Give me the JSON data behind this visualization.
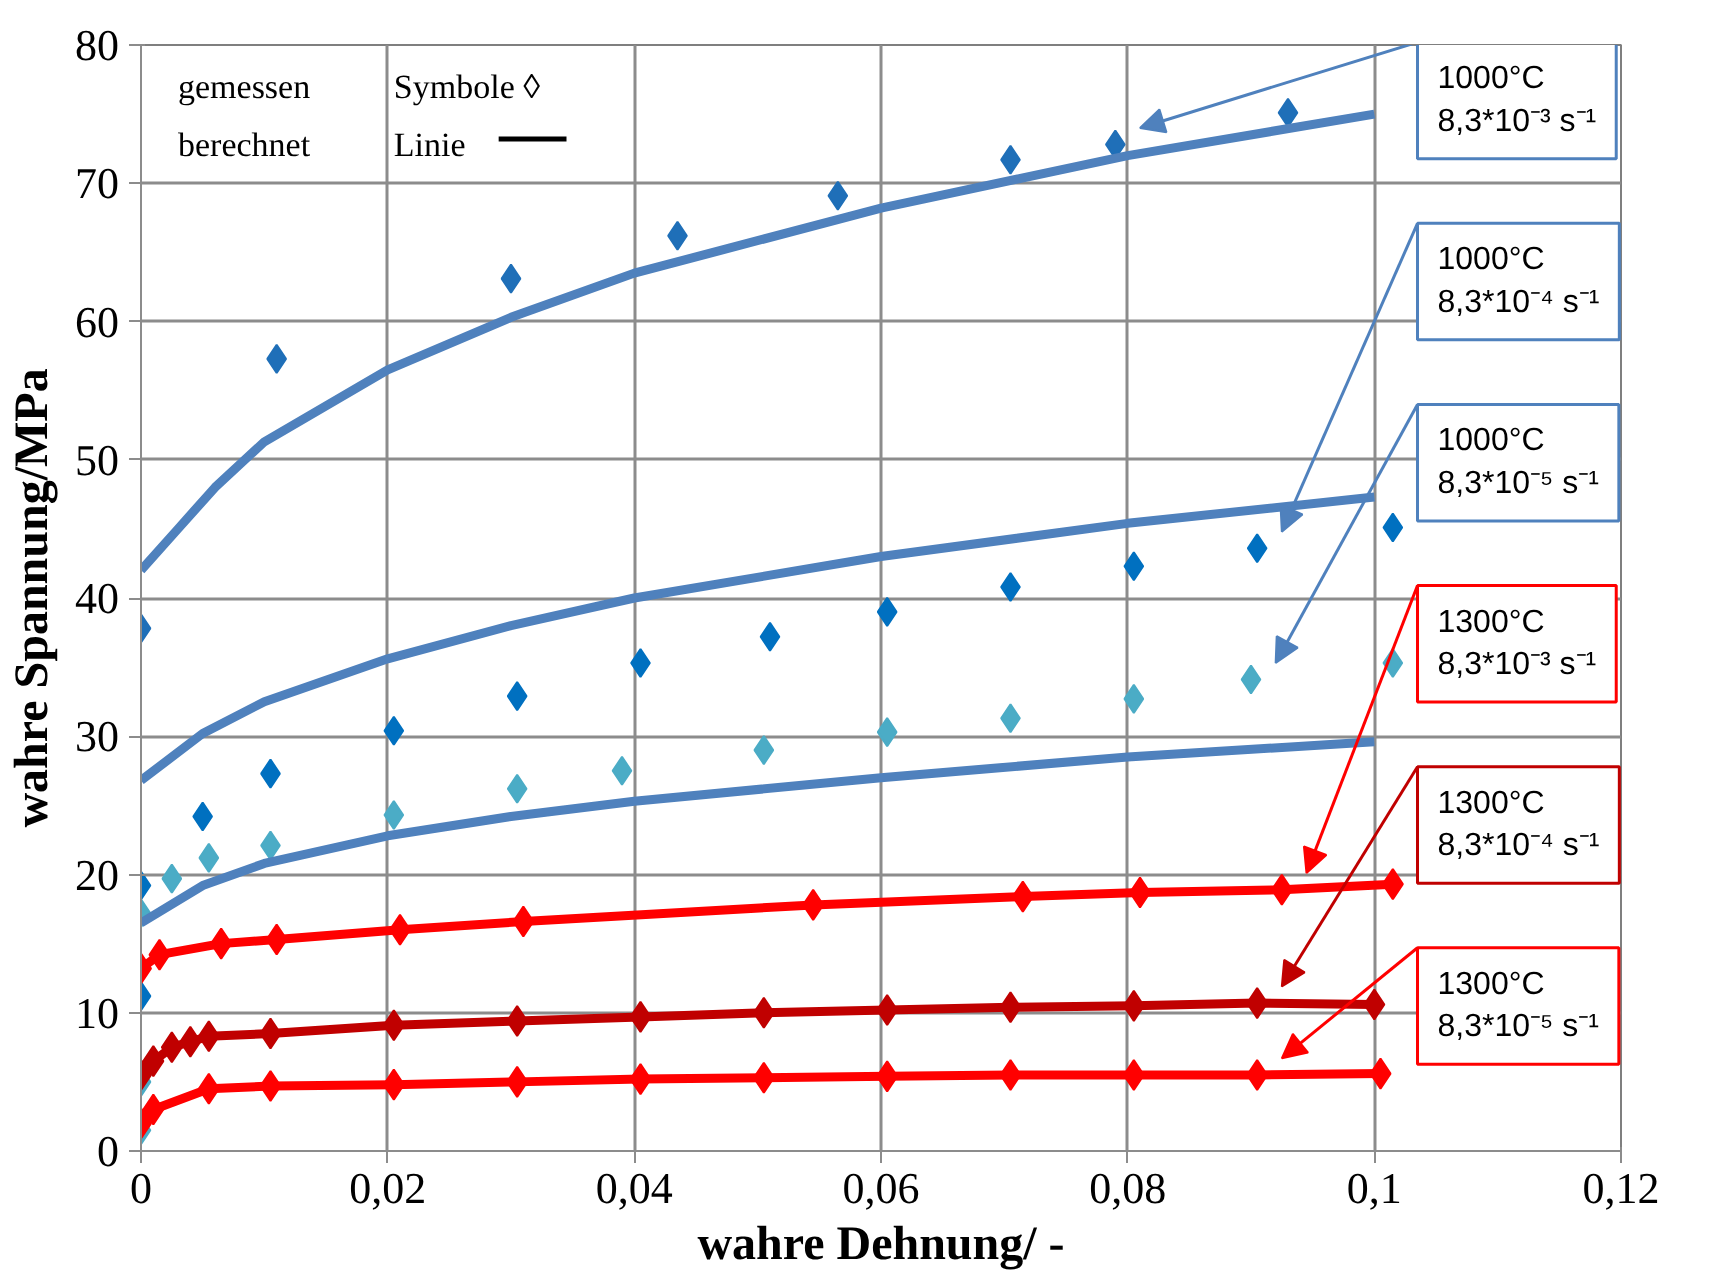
{
  "chart_data": {
    "type": "scatter",
    "xlabel": "wahre Dehnung/ -",
    "ylabel": "wahre Spannung/MPa",
    "xlim": [
      0,
      0.12
    ],
    "xticks": [
      {
        "value": 0,
        "label": "0"
      },
      {
        "value": 0.02,
        "label": "0,02"
      },
      {
        "value": 0.04,
        "label": "0,04"
      },
      {
        "value": 0.06,
        "label": "0,06"
      },
      {
        "value": 0.08,
        "label": "0,08"
      },
      {
        "value": 0.1,
        "label": "0,1"
      },
      {
        "value": 0.12,
        "label": "0,12"
      }
    ],
    "ylim": [
      0,
      80
    ],
    "yticks": [
      0,
      10,
      20,
      30,
      40,
      50,
      60,
      70,
      80
    ],
    "grid": true,
    "marker": "diamond",
    "series": [
      {
        "color": "#1f6fb8",
        "x": [
          0,
          0.011,
          0.03,
          0.0435,
          0.0565,
          0.0705,
          0.079,
          0.093
        ],
        "values": [
          37.8,
          57.3,
          63.1,
          66.2,
          69.1,
          71.7,
          72.8,
          75.1
        ]
      },
      {
        "type": "line",
        "marker": "none",
        "color": "#4f81bd",
        "x": [
          0,
          0.003,
          0.006,
          0.01,
          0.02,
          0.03,
          0.04,
          0.06,
          0.08,
          0.1
        ],
        "values": [
          42,
          45,
          48,
          51.3,
          56.5,
          60.3,
          63.5,
          68.2,
          72,
          75
        ]
      },
      {
        "color": "#0070c0",
        "x": [
          0,
          0,
          0.005,
          0.0105,
          0.0205,
          0.0305,
          0.0405,
          0.051,
          0.0605,
          0.0705,
          0.0805,
          0.0905,
          0.1015
        ],
        "values": [
          11.2,
          19.2,
          24.2,
          27.3,
          30.4,
          32.9,
          35.3,
          37.2,
          39.0,
          40.8,
          42.3,
          43.6,
          45.1
        ]
      },
      {
        "type": "line",
        "marker": "none",
        "color": "#4f81bd",
        "x": [
          0,
          0.005,
          0.01,
          0.02,
          0.03,
          0.04,
          0.06,
          0.08,
          0.1
        ],
        "values": [
          26.8,
          30.2,
          32.5,
          35.6,
          38,
          40,
          43,
          45.4,
          47.3
        ]
      },
      {
        "color": "#4bacc6",
        "x": [
          0,
          0,
          0,
          0.0025,
          0.0055,
          0.0105,
          0.0205,
          0.0305,
          0.039,
          0.0505,
          0.0605,
          0.0705,
          0.0805,
          0.09,
          0.1015
        ],
        "values": [
          1.5,
          5,
          17.2,
          19.7,
          21.2,
          22.1,
          24.3,
          26.2,
          27.5,
          29.0,
          30.3,
          31.3,
          32.7,
          34.1,
          35.3
        ]
      },
      {
        "type": "line",
        "marker": "none",
        "color": "#4f81bd",
        "x": [
          0,
          0.005,
          0.01,
          0.02,
          0.03,
          0.04,
          0.06,
          0.08,
          0.1
        ],
        "values": [
          16.5,
          19.2,
          20.8,
          22.8,
          24.2,
          25.3,
          27,
          28.5,
          29.6
        ]
      },
      {
        "type": "line",
        "color": "#ff0000",
        "x": [
          0,
          0.0015,
          0.0065,
          0.011,
          0.021,
          0.031,
          0.0545,
          0.0715,
          0.081,
          0.0925,
          0.1015
        ],
        "values": [
          13.2,
          14.2,
          15.0,
          15.3,
          16.0,
          16.6,
          17.8,
          18.4,
          18.7,
          18.9,
          19.3
        ]
      },
      {
        "type": "line",
        "color": "#c00000",
        "x": [
          0,
          0.001,
          0.0025,
          0.004,
          0.0055,
          0.0105,
          0.0205,
          0.0305,
          0.0405,
          0.0505,
          0.0605,
          0.0705,
          0.0805,
          0.0905,
          0.1
        ],
        "values": [
          5.5,
          6.5,
          7.5,
          7.9,
          8.3,
          8.5,
          9.1,
          9.4,
          9.7,
          10.0,
          10.2,
          10.4,
          10.5,
          10.7,
          10.6
        ]
      },
      {
        "type": "line",
        "color": "#ff0000",
        "x": [
          0,
          0.001,
          0.0055,
          0.0105,
          0.0205,
          0.0305,
          0.0405,
          0.0505,
          0.0605,
          0.0705,
          0.0805,
          0.0905,
          0.1005
        ],
        "values": [
          2.0,
          3.0,
          4.5,
          4.7,
          4.8,
          5.0,
          5.2,
          5.3,
          5.4,
          5.5,
          5.5,
          5.5,
          5.6
        ]
      }
    ],
    "annotations": [
      "gemessen",
      "Symbole ◊",
      "berechnet",
      "Linie",
      "1000°C\n8,3*10⁻³ s⁻¹",
      "1000°C\n8,3*10⁻⁴ s⁻¹",
      "1000°C\n8,3*10⁻⁵ s⁻¹",
      "1300°C\n8,3*10⁻³ s⁻¹",
      "1300°C\n8,3*10⁻⁴ s⁻¹",
      "1300°C\n8,3*10⁻⁵ s⁻¹"
    ]
  }
}
